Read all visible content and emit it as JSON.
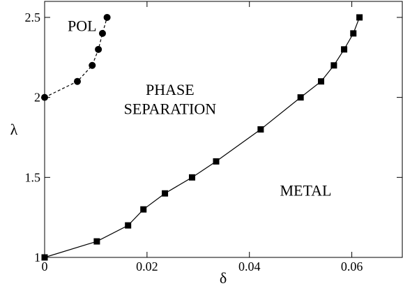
{
  "chart_data": {
    "type": "scatter",
    "title": "",
    "xlabel": "δ",
    "ylabel": "λ",
    "xlim": [
      0,
      0.07
    ],
    "ylim": [
      1,
      2.6
    ],
    "x_ticks": [
      0,
      0.02,
      0.04,
      0.06
    ],
    "x_tick_labels": [
      "0",
      "0.02",
      "0.04",
      "0.06"
    ],
    "y_ticks": [
      1,
      1.5,
      2,
      2.5
    ],
    "y_tick_labels": [
      "1",
      "1.5",
      "2",
      "2.5"
    ],
    "grid": false,
    "legend": "none",
    "series": [
      {
        "marker": "circle",
        "line": "dashed",
        "color": "#000000",
        "x": [
          0.0,
          0.0064,
          0.0093,
          0.0105,
          0.0113,
          0.0122
        ],
        "y": [
          2.0,
          2.1,
          2.2,
          2.3,
          2.4,
          2.5
        ]
      },
      {
        "marker": "square",
        "line": "solid",
        "color": "#000000",
        "x": [
          0.0,
          0.0102,
          0.0163,
          0.0193,
          0.0235,
          0.0288,
          0.0335,
          0.0422,
          0.05,
          0.054,
          0.0565,
          0.0585,
          0.0603,
          0.0615
        ],
        "y": [
          1.0,
          1.1,
          1.2,
          1.3,
          1.4,
          1.5,
          1.6,
          1.8,
          2.0,
          2.1,
          2.2,
          2.3,
          2.4,
          2.5
        ]
      }
    ],
    "annotations": [
      {
        "text": "POL",
        "x": 0.0045,
        "y": 2.45
      },
      {
        "text": "PHASE",
        "x": 0.0245,
        "y": 2.05
      },
      {
        "text": "SEPARATION",
        "x": 0.0245,
        "y": 1.93
      },
      {
        "text": "METAL",
        "x": 0.051,
        "y": 1.42
      }
    ]
  }
}
